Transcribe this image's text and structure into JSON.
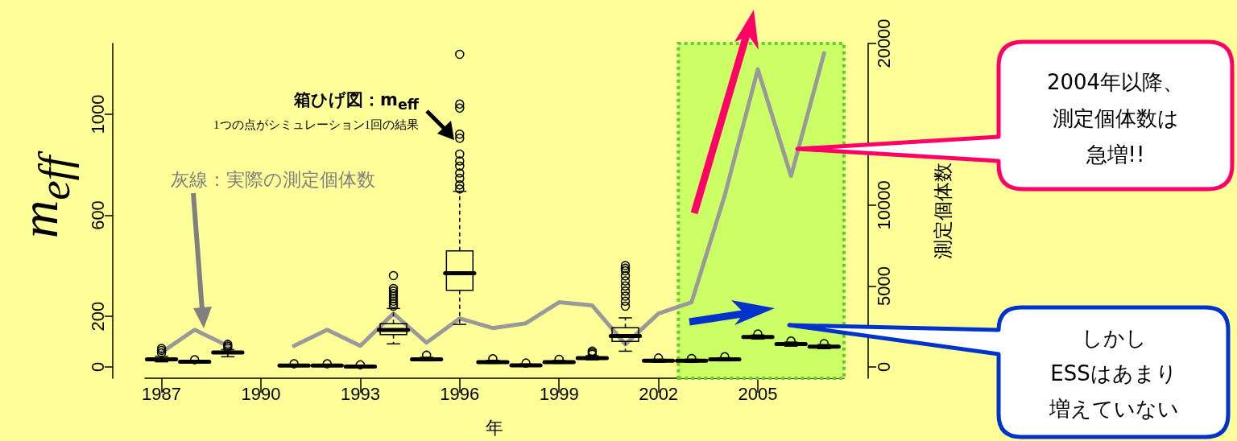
{
  "chart_data": {
    "type": "box",
    "xlabel": "年",
    "ylabel": "m$_{eff}$",
    "y2label": "測定個体数",
    "x": [
      1987,
      1988,
      1989,
      1990,
      1991,
      1992,
      1993,
      1994,
      1995,
      1996,
      1997,
      1998,
      1999,
      2000,
      2001,
      2002,
      2003,
      2004,
      2005,
      2006,
      2007
    ],
    "xlim": [
      1986.5,
      2007.6
    ],
    "xticks": [
      1987,
      1990,
      1993,
      1996,
      1999,
      2002,
      2005
    ],
    "ylim": [
      -45,
      1280
    ],
    "yticks": [
      0,
      200,
      600,
      1000
    ],
    "y2lim": [
      -700,
      20000
    ],
    "y2ticks": [
      0,
      5000,
      10000,
      20000
    ],
    "grid": false,
    "marker": "none",
    "series": [
      {
        "type": "box",
        "color": "#000000",
        "boxes": [
          {
            "low": 20,
            "q1": 27,
            "median": 30,
            "q3": 34,
            "high": 42,
            "outliers": [
              55,
              65,
              73
            ]
          },
          {
            "low": 15,
            "q1": 18,
            "median": 20,
            "q3": 22,
            "high": 25,
            "outliers": [
              28
            ]
          },
          {
            "low": 40,
            "q1": 54,
            "median": 57,
            "q3": 61,
            "high": 68,
            "outliers": [
              75,
              82,
              89
            ]
          },
          null,
          {
            "low": 2,
            "q1": 4,
            "median": 5,
            "q3": 6,
            "high": 8,
            "outliers": [
              12
            ]
          },
          {
            "low": 2,
            "q1": 4,
            "median": 5,
            "q3": 6,
            "high": 8,
            "outliers": [
              12
            ]
          },
          {
            "low": 0,
            "q1": 1,
            "median": 1,
            "q3": 2,
            "high": 4,
            "outliers": [
              8
            ]
          },
          {
            "low": 91,
            "q1": 128,
            "median": 146,
            "q3": 171,
            "high": 231,
            "outliers": [
              240,
              250,
              260,
              270,
              280,
              290,
              300,
              310,
              361
            ]
          },
          {
            "low": 24,
            "q1": 28,
            "median": 30,
            "q3": 33,
            "high": 38,
            "outliers": [
              46
            ]
          },
          {
            "low": 168,
            "q1": 303,
            "median": 371,
            "q3": 459,
            "high": 695,
            "outliers": [
              704,
              720,
              746,
              767,
              794,
              815,
              842,
              905,
              921,
              1024,
              1040,
              1237
            ]
          },
          {
            "low": 14,
            "q1": 17,
            "median": 19,
            "q3": 21,
            "high": 26,
            "outliers": [
              32
            ]
          },
          {
            "low": 2,
            "q1": 5,
            "median": 6,
            "q3": 8,
            "high": 11,
            "outliers": [
              15
            ]
          },
          {
            "low": 14,
            "q1": 17,
            "median": 19,
            "q3": 21,
            "high": 25,
            "outliers": [
              30
            ]
          },
          {
            "low": 28,
            "q1": 33,
            "median": 35,
            "q3": 38,
            "high": 44,
            "outliers": [
              50,
              56,
              62
            ]
          },
          {
            "low": 62,
            "q1": 101,
            "median": 122,
            "q3": 155,
            "high": 194,
            "outliers": [
              240,
              260,
              280,
              300,
              320,
              340,
              360,
              380,
              390,
              401
            ]
          },
          {
            "low": 18,
            "q1": 22,
            "median": 24,
            "q3": 26,
            "high": 30,
            "outliers": [
              35
            ]
          },
          {
            "low": 18,
            "q1": 21,
            "median": 24,
            "q3": 26,
            "high": 30,
            "outliers": [
              33
            ]
          },
          {
            "low": 24,
            "q1": 28,
            "median": 30,
            "q3": 32,
            "high": 36,
            "outliers": [
              40
            ]
          },
          {
            "low": 110,
            "q1": 116,
            "median": 118,
            "q3": 121,
            "high": 126,
            "outliers": [
              130
            ]
          },
          {
            "low": 82,
            "q1": 88,
            "median": 90,
            "q3": 92,
            "high": 98,
            "outliers": [
              102
            ]
          },
          {
            "low": 72,
            "q1": 78,
            "median": 80,
            "q3": 82,
            "high": 88,
            "outliers": [
              92
            ]
          }
        ]
      },
      {
        "type": "line",
        "axis": "y2",
        "color": "#999999",
        "values": [
          900,
          2300,
          1300,
          null,
          1300,
          2300,
          1300,
          3300,
          1500,
          3000,
          2400,
          2700,
          4000,
          3800,
          1400,
          3300,
          4000,
          10600,
          18400,
          11800,
          19400
        ]
      }
    ],
    "bands": [
      {
        "axis": "x",
        "from": 2002.6,
        "to": 2007.6,
        "color": "#ccff66"
      }
    ],
    "annotations": [
      "箱ひげ図：m$_{eff}$",
      "1つの点がシミュレーション1回の結果",
      "灰線：実際の測定個体数",
      "2004年以降、",
      "測定個体数は",
      "急増!!",
      "しかし",
      "ESSはあまり",
      "増えていない"
    ]
  }
}
